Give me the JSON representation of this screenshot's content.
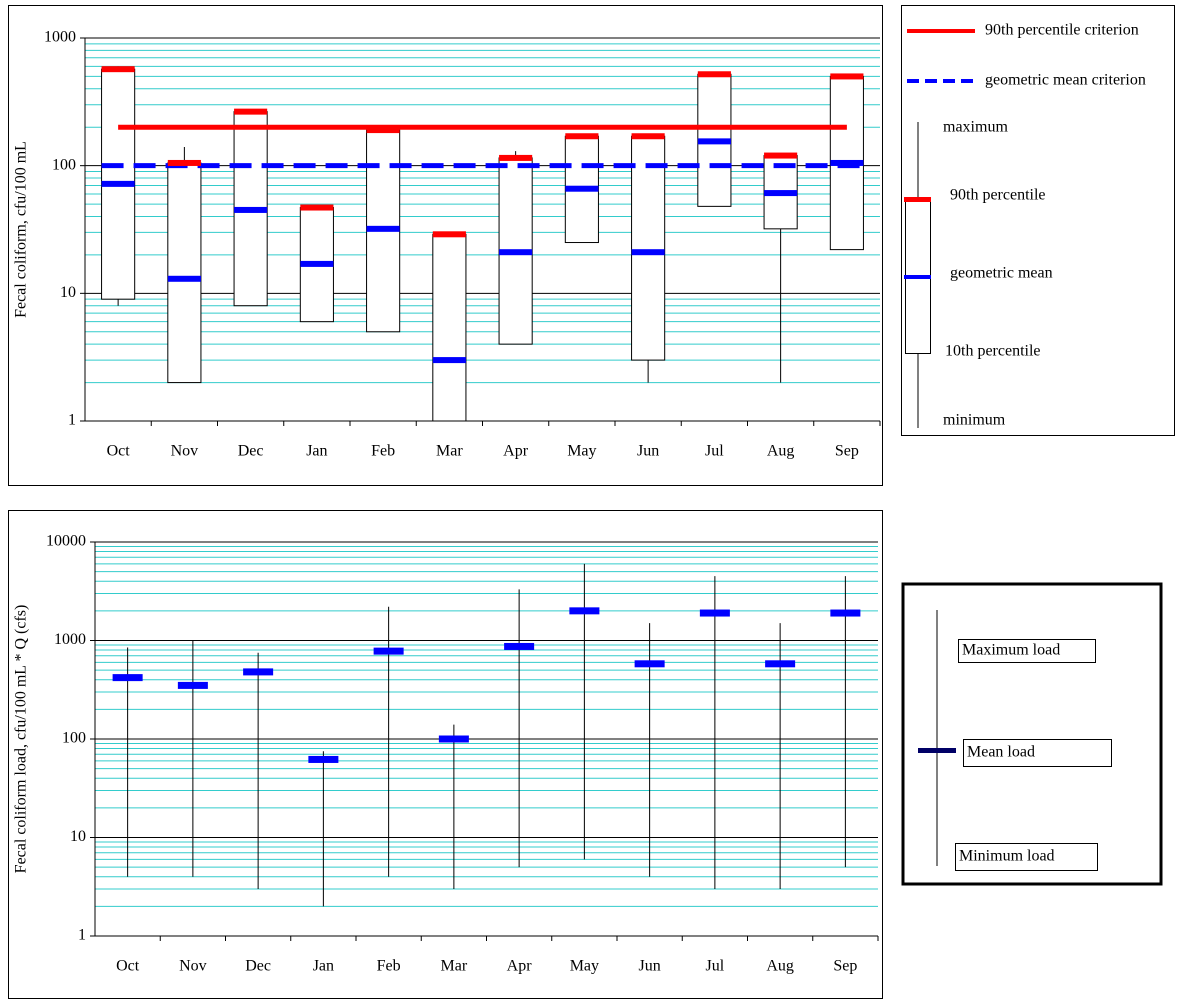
{
  "chart_data": [
    {
      "type": "box",
      "y_label": "Fecal coliform, cfu/100 mL",
      "categories": [
        "Oct",
        "Nov",
        "Dec",
        "Jan",
        "Feb",
        "Mar",
        "Apr",
        "May",
        "Jun",
        "Jul",
        "Aug",
        "Sep"
      ],
      "log_scale": true,
      "grid": true,
      "minor_grid_color": "#33cccc",
      "ylim": [
        1,
        1000
      ],
      "yticks": [
        1,
        10,
        100,
        1000
      ],
      "series": [
        {
          "name": "maximum",
          "color": "#000000",
          "values": [
            600,
            140,
            270,
            47,
            190,
            29,
            130,
            170,
            170,
            520,
            120,
            500
          ]
        },
        {
          "name": "90th percentile",
          "color": "#ff0000",
          "values": [
            570,
            105,
            265,
            47,
            190,
            29,
            115,
            170,
            170,
            520,
            120,
            500
          ]
        },
        {
          "name": "geometric mean",
          "color": "#0000ff",
          "values": [
            72,
            13,
            45,
            17,
            32,
            3,
            21,
            66,
            21,
            155,
            61,
            105
          ]
        },
        {
          "name": "10th percentile",
          "color": "#000000",
          "values": [
            9,
            2,
            8,
            6,
            5,
            1,
            4,
            25,
            3,
            48,
            32,
            22
          ]
        },
        {
          "name": "minimum",
          "color": "#000000",
          "values": [
            8,
            2,
            8,
            6,
            5,
            1,
            4,
            25,
            2,
            48,
            2,
            22
          ]
        }
      ],
      "criteria": [
        {
          "name": "90th percentile criterion",
          "value": 200,
          "color": "#ff0000",
          "style": "solid"
        },
        {
          "name": "geometric mean criterion",
          "value": 100,
          "color": "#0000ff",
          "style": "dashed"
        }
      ]
    },
    {
      "type": "range",
      "y_label": "Fecal coliform load, cfu/100 mL * Q (cfs)",
      "categories": [
        "Oct",
        "Nov",
        "Dec",
        "Jan",
        "Feb",
        "Mar",
        "Apr",
        "May",
        "Jun",
        "Jul",
        "Aug",
        "Sep"
      ],
      "log_scale": true,
      "grid": true,
      "minor_grid_color": "#33cccc",
      "ylim": [
        1,
        10000
      ],
      "yticks": [
        1,
        10,
        100,
        1000,
        10000
      ],
      "series": [
        {
          "name": "Maximum load",
          "color": "#000000",
          "values": [
            850,
            1000,
            750,
            75,
            2200,
            140,
            3300,
            6000,
            1500,
            4500,
            1500,
            4500
          ]
        },
        {
          "name": "Mean load",
          "color": "#0000ff",
          "values": [
            420,
            350,
            480,
            62,
            780,
            100,
            870,
            2000,
            580,
            1900,
            580,
            1900
          ]
        },
        {
          "name": "Minimum load",
          "color": "#000000",
          "values": [
            4,
            4,
            3,
            2,
            4,
            3,
            5,
            6,
            4,
            3,
            3,
            5
          ]
        }
      ]
    }
  ]
}
